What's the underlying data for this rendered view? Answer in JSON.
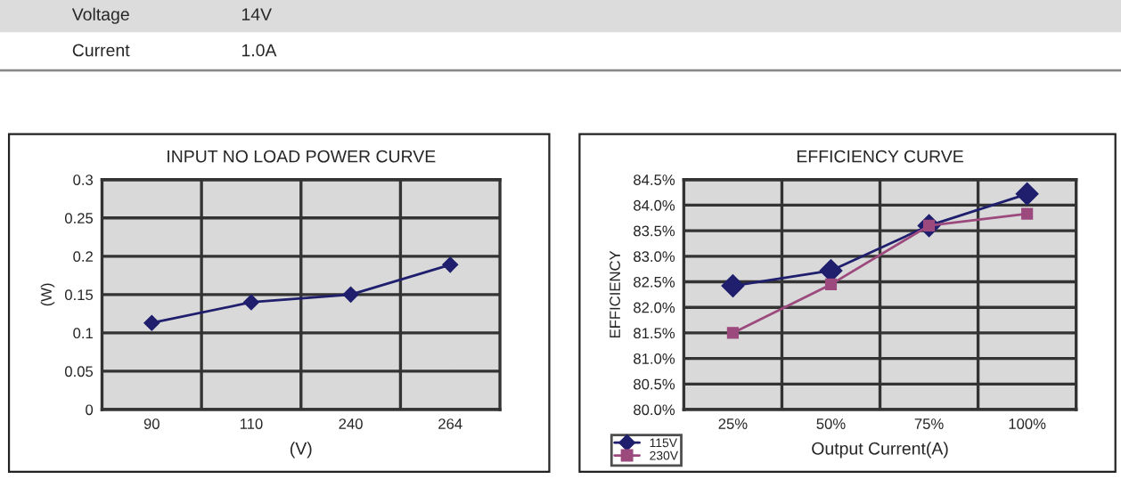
{
  "chart_data": [
    {
      "type": "other",
      "annotations": [
        "Voltage",
        "14V",
        "Current",
        "1.0A"
      ]
    },
    {
      "type": "line",
      "title": "INPUT NO LOAD POWER CURVE",
      "xlabel": "(V)",
      "ylabel": "(W)",
      "categories": [
        "90",
        "110",
        "240",
        "264"
      ],
      "series": [
        {
          "color": "#1f1f6e",
          "values": [
            0.113,
            0.14,
            0.15,
            0.189
          ]
        }
      ],
      "ylim": [
        0,
        0.3
      ],
      "yticks": [
        0,
        0.05,
        0.1,
        0.15,
        0.2,
        0.25,
        0.3
      ],
      "grid": true,
      "marker": "diamond",
      "legend": false
    },
    {
      "type": "line",
      "title": "EFFICIENCY CURVE",
      "xlabel": "Output Current(A)",
      "ylabel": "EFFICIENCY",
      "categories": [
        "25%",
        "50%",
        "75%",
        "100%"
      ],
      "series": [
        {
          "name": "115V",
          "color": "#1f1f6e",
          "marker": "diamond",
          "values": [
            82.42,
            82.72,
            83.6,
            84.22
          ]
        },
        {
          "name": "230V",
          "color": "#9c4a7e",
          "marker": "square",
          "values": [
            81.5,
            82.45,
            83.6,
            83.83
          ]
        }
      ],
      "ylim": [
        80.0,
        84.5
      ],
      "yticks": [
        {
          "value": 80.0,
          "label": "80.0%"
        },
        {
          "value": 80.5,
          "label": "80.5%"
        },
        {
          "value": 81.0,
          "label": "81.0%"
        },
        {
          "value": 81.5,
          "label": "81.5%"
        },
        {
          "value": 82.0,
          "label": "82.0%"
        },
        {
          "value": 82.5,
          "label": "82.5%"
        },
        {
          "value": 83.0,
          "label": "83.0%"
        },
        {
          "value": 83.5,
          "label": "83.5%"
        },
        {
          "value": 84.0,
          "label": "84.0%"
        },
        {
          "value": 84.5,
          "label": "84.5%"
        }
      ],
      "grid": true,
      "legend": "bottom left"
    }
  ]
}
